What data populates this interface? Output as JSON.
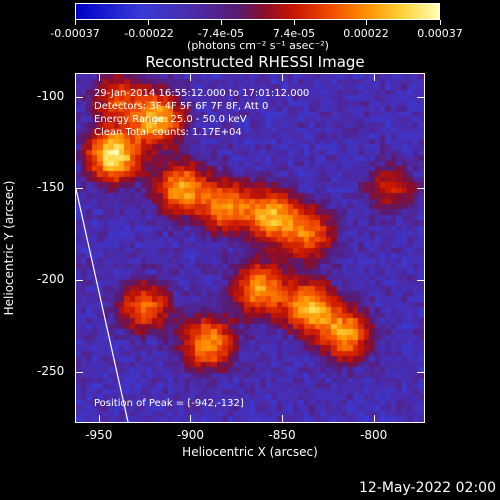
{
  "chart_data": {
    "type": "heatmap",
    "title": "Reconstructed RHESSI Image",
    "xlabel": "Heliocentric X (arcsec)",
    "ylabel": "Heliocentric Y (arcsec)",
    "xlim": [
      -963,
      -772
    ],
    "ylim": [
      -278,
      -87
    ],
    "x_ticks": [
      "-950",
      "-900",
      "-850",
      "-800"
    ],
    "x_tick_values": [
      -950,
      -900,
      -850,
      -800
    ],
    "y_ticks": [
      "-100",
      "-150",
      "-200",
      "-250"
    ],
    "y_tick_values": [
      -100,
      -150,
      -200,
      -250
    ],
    "colorbar": {
      "range": [
        -0.00037,
        0.00037
      ],
      "tick_labels": [
        "-0.00037",
        "-0.00022",
        "-7.4e-05",
        "7.4e-05",
        "0.00022",
        "0.00037"
      ],
      "tick_values": [
        -0.00037,
        -0.00022,
        -7.4e-05,
        7.4e-05,
        0.00022,
        0.00037
      ],
      "units": "(photons cm⁻² s⁻¹ asec⁻²)",
      "colors": [
        "#0000c8",
        "#4b2aa8",
        "#8a0d2a",
        "#f04a00",
        "#ffd23c",
        "#ffffb4"
      ]
    },
    "annotations": [
      "29-Jan-2014 16:55:12.000 to 17:01:12.000",
      "Detectors: 3F 4F 5F 6F 7F 8F, Att 0",
      "Energy Range: 25.0 - 50.0 keV",
      "Clean    Total counts: 1.17E+04"
    ],
    "peak_label": "Position of Peak = [-942,-132]",
    "peak_position": [
      -942,
      -132
    ],
    "bright_regions": [
      {
        "x": -942,
        "y": -132,
        "level": 1.0
      },
      {
        "x": -918,
        "y": -112,
        "level": 0.8
      },
      {
        "x": -905,
        "y": -150,
        "level": 0.75
      },
      {
        "x": -880,
        "y": -160,
        "level": 0.7
      },
      {
        "x": -855,
        "y": -165,
        "level": 0.75
      },
      {
        "x": -835,
        "y": -175,
        "level": 0.6
      },
      {
        "x": -862,
        "y": -205,
        "level": 0.75
      },
      {
        "x": -835,
        "y": -215,
        "level": 0.8
      },
      {
        "x": -815,
        "y": -230,
        "level": 0.75
      },
      {
        "x": -890,
        "y": -235,
        "level": 0.75
      },
      {
        "x": -925,
        "y": -215,
        "level": 0.6
      },
      {
        "x": -790,
        "y": -150,
        "level": 0.4
      },
      {
        "x": -940,
        "y": -100,
        "level": 0.5
      }
    ]
  },
  "footer_date": "12-May-2022 02:00"
}
